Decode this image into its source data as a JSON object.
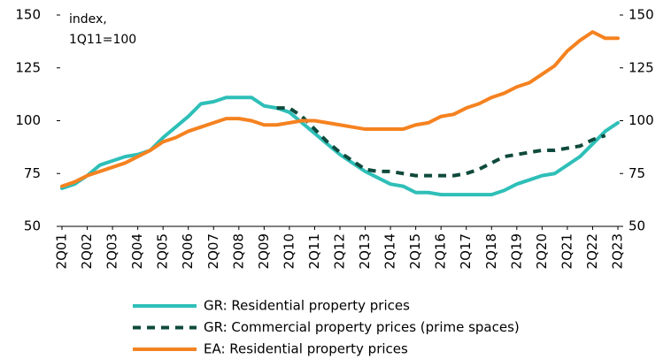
{
  "chart_data": {
    "type": "line",
    "annotation": [
      "index,",
      "1Q11=100"
    ],
    "categories": [
      "2Q01",
      null,
      "2Q02",
      null,
      "2Q03",
      null,
      "2Q04",
      null,
      "2Q05",
      null,
      "2Q06",
      null,
      "2Q07",
      null,
      "2Q08",
      null,
      "2Q09",
      null,
      "2Q10",
      null,
      "2Q11",
      null,
      "2Q12",
      null,
      "2Q13",
      null,
      "2Q14",
      null,
      "2Q15",
      null,
      "2Q16",
      null,
      "2Q17",
      null,
      "2Q18",
      null,
      "2Q19",
      null,
      "2Q20",
      null,
      "2Q21",
      null,
      "2Q22",
      null,
      "2Q23"
    ],
    "series": [
      {
        "name": "GR: Residential property prices",
        "color": "#2ebfb8",
        "line_style": "solid",
        "values": [
          68,
          70,
          74,
          79,
          81,
          83,
          84,
          86,
          92,
          97,
          102,
          108,
          109,
          111,
          111,
          111,
          107,
          106,
          104,
          99,
          94,
          89,
          84,
          80,
          76,
          73,
          70,
          69,
          66,
          66,
          65,
          65,
          65,
          65,
          65,
          67,
          70,
          72,
          74,
          75,
          79,
          83,
          89,
          95,
          99
        ]
      },
      {
        "name": "GR: Commercial property prices (prime spaces)",
        "color": "#0f4a3c",
        "line_style": "dashed",
        "values": [
          null,
          null,
          null,
          null,
          null,
          null,
          null,
          null,
          null,
          null,
          null,
          null,
          null,
          null,
          null,
          null,
          null,
          106,
          106,
          102,
          96,
          90,
          85,
          81,
          77,
          76,
          76,
          75,
          74,
          74,
          74,
          74,
          75,
          77,
          80,
          83,
          84,
          85,
          86,
          86,
          87,
          88,
          91,
          93,
          null
        ]
      },
      {
        "name": "EA: Residential property prices",
        "color": "#f58220",
        "line_style": "solid",
        "values": [
          69,
          71,
          74,
          76,
          78,
          80,
          83,
          86,
          90,
          92,
          95,
          97,
          99,
          101,
          101,
          100,
          98,
          98,
          99,
          100,
          100,
          99,
          98,
          97,
          96,
          96,
          96,
          96,
          98,
          99,
          102,
          103,
          106,
          108,
          111,
          113,
          116,
          118,
          122,
          126,
          133,
          138,
          142,
          139,
          139
        ]
      }
    ],
    "ylim": [
      50,
      150
    ],
    "yticks": [
      50,
      75,
      100,
      125,
      150
    ],
    "y2lim": [
      50,
      150
    ],
    "y2ticks": [
      50,
      75,
      100,
      125,
      150
    ]
  }
}
